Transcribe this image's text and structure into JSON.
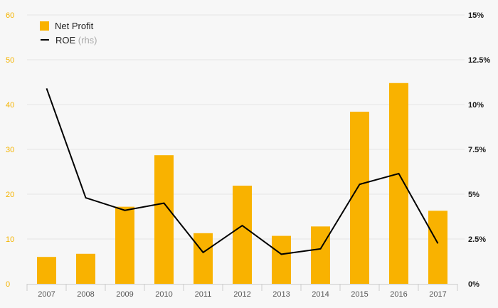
{
  "colors": {
    "bar": "#f9b200",
    "line": "#000000",
    "left_axis_text": "#f5b400",
    "grid": "#e6e6e6"
  },
  "legend": {
    "bar_label": "Net Profit",
    "line_label": "ROE",
    "line_suffix": "(rhs)"
  },
  "chart_data": {
    "type": "bar",
    "categories": [
      "2007",
      "2008",
      "2009",
      "2010",
      "2011",
      "2012",
      "2013",
      "2014",
      "2015",
      "2016",
      "2017"
    ],
    "series": [
      {
        "name": "Net Profit",
        "type": "bar",
        "axis": "left",
        "values": [
          6,
          6.7,
          17.2,
          28.7,
          11.3,
          21.9,
          10.7,
          12.8,
          38.4,
          44.8,
          16.3
        ]
      },
      {
        "name": "ROE",
        "type": "line",
        "axis": "right",
        "values": [
          10.9,
          4.8,
          4.1,
          4.5,
          1.75,
          3.25,
          1.65,
          1.95,
          5.55,
          6.15,
          2.25
        ]
      }
    ],
    "left_axis": {
      "ylim": [
        0,
        60
      ],
      "ticks": [
        "0",
        "10",
        "20",
        "30",
        "40",
        "50",
        "60"
      ]
    },
    "right_axis": {
      "ylim": [
        0,
        15
      ],
      "ticks": [
        "0%",
        "2.5%",
        "5%",
        "7.5%",
        "10%",
        "12.5%",
        "15%"
      ]
    },
    "grid": true,
    "legend_position": "top-left"
  }
}
